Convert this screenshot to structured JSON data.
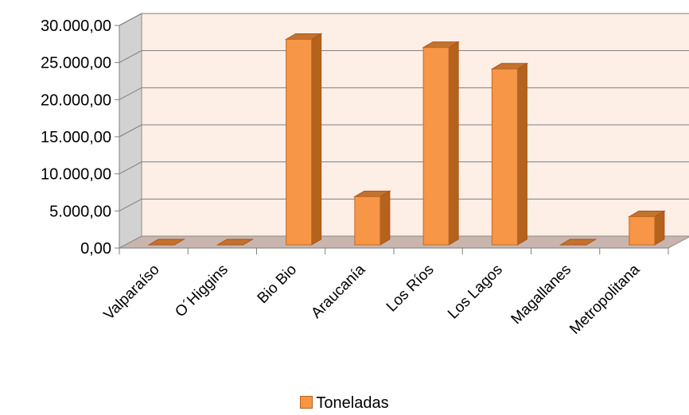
{
  "chart_data": {
    "type": "bar",
    "categories": [
      "Valparaíso",
      "O´Higgins",
      "Bio Bio",
      "Araucanía",
      "Los Ríos",
      "Los Lagos",
      "Magallanes",
      "Metropolitana"
    ],
    "series": [
      {
        "name": "Toneladas",
        "values": [
          0,
          0,
          27700,
          6500,
          26600,
          23700,
          0,
          3800
        ],
        "color": "#f79646"
      }
    ],
    "yticks": [
      "0,00",
      "5.000,00",
      "10.000,00",
      "15.000,00",
      "20.000,00",
      "25.000,00",
      "30.000,00"
    ],
    "ylim": [
      0,
      30000
    ],
    "grid": true,
    "legend_position": "bottom",
    "three_d": true,
    "colors": {
      "bar_front": "#f79646",
      "bar_side": "#b5621d",
      "bar_top": "#c4722f",
      "back_wall": "#fdeee6",
      "floor": "#c9b5ad"
    }
  }
}
